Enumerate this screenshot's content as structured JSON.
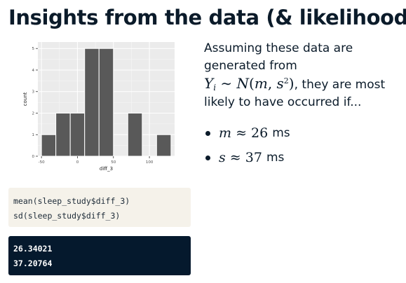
{
  "slide": {
    "title": "Insights from the data (& likelihood)"
  },
  "chart_data": {
    "type": "bar",
    "xlabel": "diff_3",
    "ylabel": "count",
    "bins": [
      {
        "start": -50,
        "end": -30,
        "count": 1
      },
      {
        "start": -30,
        "end": -10,
        "count": 2
      },
      {
        "start": -10,
        "end": 10,
        "count": 2
      },
      {
        "start": 10,
        "end": 30,
        "count": 5
      },
      {
        "start": 30,
        "end": 50,
        "count": 5
      },
      {
        "start": 50,
        "end": 70,
        "count": 0
      },
      {
        "start": 70,
        "end": 90,
        "count": 2
      },
      {
        "start": 90,
        "end": 110,
        "count": 0
      },
      {
        "start": 110,
        "end": 130,
        "count": 1
      }
    ],
    "xlim": [
      -55,
      135
    ],
    "ylim": [
      0,
      5.3
    ],
    "x_ticks": [
      -50,
      0,
      50,
      100
    ],
    "y_ticks": [
      0,
      1,
      2,
      3,
      4,
      5
    ],
    "grid": true,
    "bar_color": "#595959",
    "panel_color": "#ebebeb"
  },
  "text": {
    "line1": "Assuming these data are",
    "line2": "generated from",
    "after_formula": ", they are most",
    "line4": "likely to have occurred if..."
  },
  "formula": {
    "Y": "Y",
    "i": "i",
    "tilde": " ∼ ",
    "N": "N",
    "open": "(",
    "m": "m",
    "comma": ", ",
    "s": "s",
    "sq": "2",
    "close": ")"
  },
  "bullets": [
    {
      "var": "m",
      "approx": " ≈ ",
      "value": "26",
      "unit": "ms"
    },
    {
      "var": "s",
      "approx": " ≈ ",
      "value": "37",
      "unit": "ms"
    }
  ],
  "code": {
    "lines": [
      "mean(sleep_study$diff_3)",
      "sd(sleep_study$diff_3)"
    ]
  },
  "output": {
    "lines": [
      "26.34021",
      "37.20764"
    ]
  }
}
